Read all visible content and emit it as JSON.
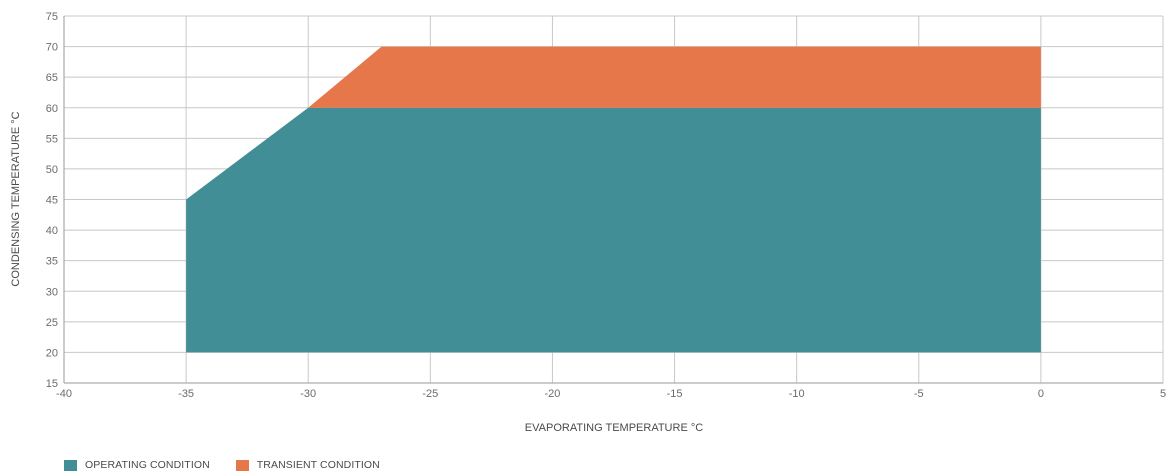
{
  "chart_data": {
    "type": "area",
    "xlabel": "EVAPORATING TEMPERATURE °C",
    "ylabel": "CONDENSING TEMPERATURE °C",
    "xlim": [
      -40,
      5
    ],
    "ylim": [
      15,
      75
    ],
    "x_ticks": [
      -40,
      -35,
      -30,
      -25,
      -20,
      -15,
      -10,
      -5,
      0,
      5
    ],
    "y_ticks": [
      15,
      20,
      25,
      30,
      35,
      40,
      45,
      50,
      55,
      60,
      65,
      70,
      75
    ],
    "grid": true,
    "legend_position": "bottom-left",
    "series": [
      {
        "name": "OPERATING CONDITION",
        "color": "#418e97",
        "polygon": [
          [
            -35,
            20
          ],
          [
            -35,
            45
          ],
          [
            -30,
            60
          ],
          [
            0,
            60
          ],
          [
            0,
            20
          ]
        ]
      },
      {
        "name": "TRANSIENT CONDITION",
        "color": "#e6774a",
        "polygon": [
          [
            -30,
            60
          ],
          [
            -27,
            70
          ],
          [
            0,
            70
          ],
          [
            0,
            60
          ]
        ]
      }
    ]
  }
}
